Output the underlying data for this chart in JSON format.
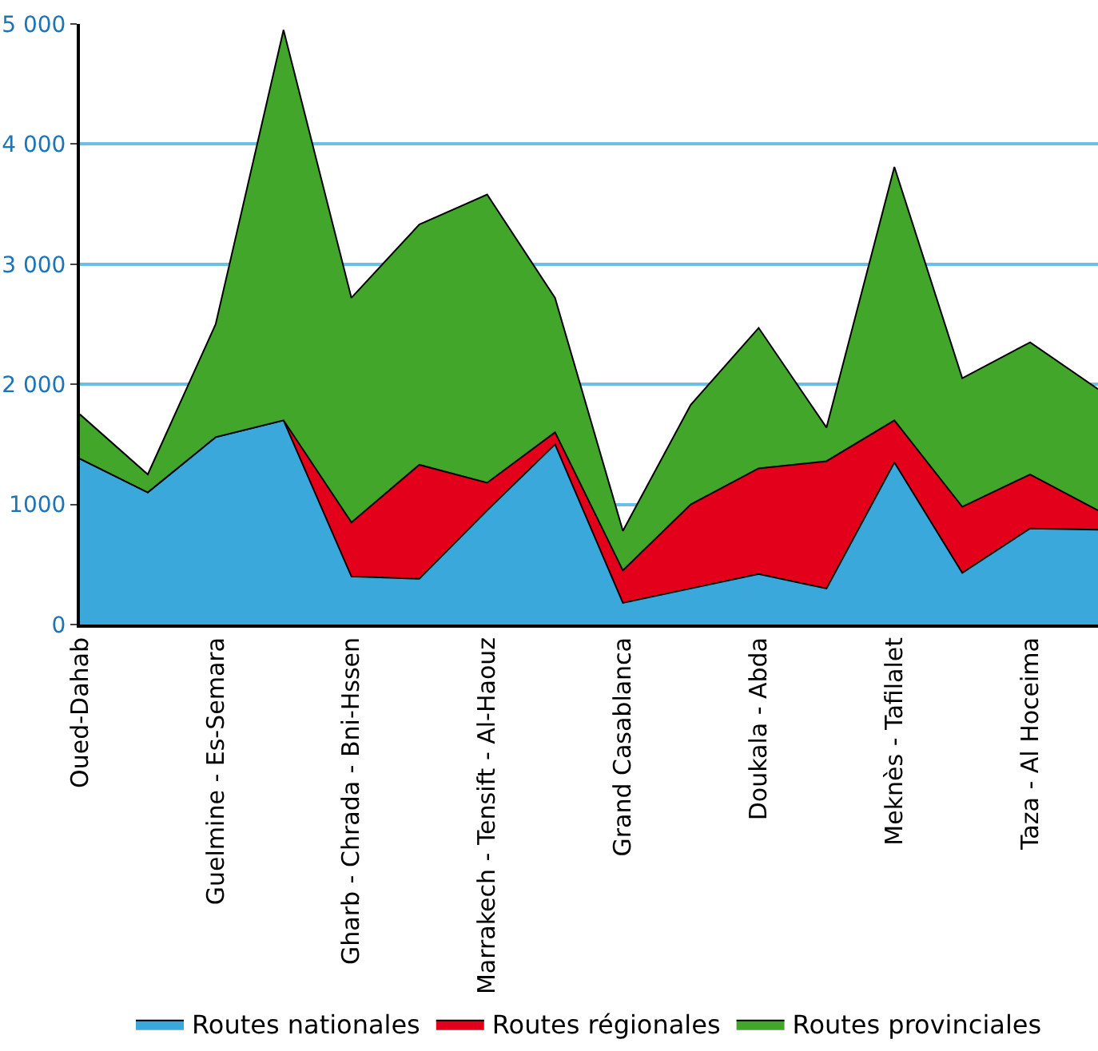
{
  "chart_data": {
    "type": "area",
    "stacked": true,
    "categories": [
      "Oued-Dahab",
      null,
      "Guelmine - Es-Semara",
      null,
      "Gharb - Chrada - Bni-Hssen",
      null,
      "Marrakech - Tensift - Al-Haouz",
      null,
      "Grand Casablanca",
      null,
      "Doukala - Abda",
      null,
      "Meknès - Tafilalet",
      null,
      "Taza - Al Hoceima",
      null
    ],
    "series": [
      {
        "name": "Routes nationales",
        "color": "#3ba8dc",
        "values": [
          1380,
          1100,
          1560,
          1700,
          400,
          380,
          950,
          1500,
          180,
          300,
          420,
          300,
          1350,
          430,
          800,
          790
        ]
      },
      {
        "name": "Routes régionales",
        "color": "#e2001a",
        "values": [
          0,
          0,
          0,
          0,
          450,
          950,
          230,
          100,
          270,
          700,
          880,
          1060,
          350,
          550,
          450,
          160
        ]
      },
      {
        "name": "Routes provinciales",
        "color": "#42a62a",
        "values": [
          370,
          150,
          940,
          3250,
          1870,
          2000,
          2400,
          1120,
          330,
          830,
          1170,
          280,
          2110,
          1070,
          1100,
          1010
        ]
      }
    ],
    "ylim": [
      0,
      5000
    ],
    "yticks": [
      {
        "value": 0,
        "label": "0"
      },
      {
        "value": 1000,
        "label": "1000"
      },
      {
        "value": 2000,
        "label": "2 000"
      },
      {
        "value": 3000,
        "label": "3 000"
      },
      {
        "value": 4000,
        "label": "4 000"
      },
      {
        "value": 5000,
        "label": "5 000"
      }
    ],
    "grid": "y",
    "legend": "bottom"
  }
}
